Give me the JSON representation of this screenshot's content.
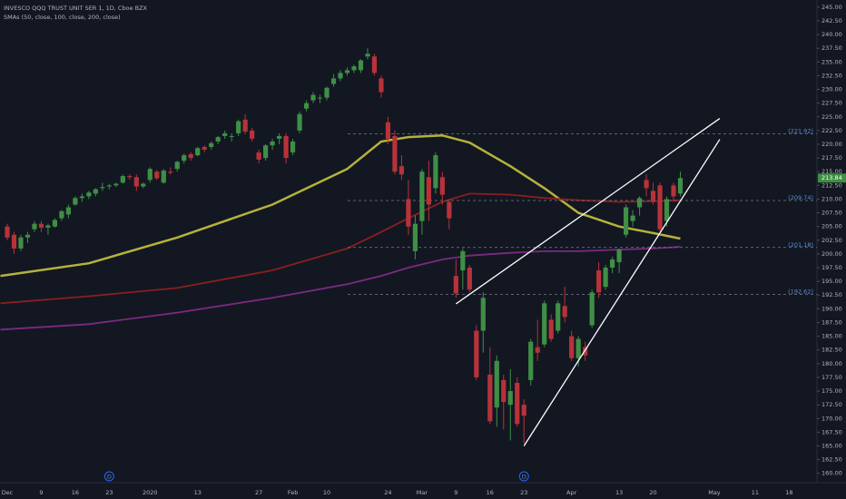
{
  "chart_data": {
    "type": "candlestick",
    "title": "INVESCO QQQ TRUST UNIT SER 1, 1D, Cboe BZX",
    "subtitle": "SMAs (50, close, 100, close, 200, close)",
    "up_color": "#3f8f45",
    "down_color": "#b8323a",
    "ylim": [
      158.3,
      246.3
    ],
    "yticks": [
      {
        "value": 160,
        "label": "160.00"
      },
      {
        "value": 162.5,
        "label": "162.50"
      },
      {
        "value": 165,
        "label": "165.00"
      },
      {
        "value": 167.5,
        "label": "167.50"
      },
      {
        "value": 170,
        "label": "170.00"
      },
      {
        "value": 172.5,
        "label": "172.50"
      },
      {
        "value": 175,
        "label": "175.00"
      },
      {
        "value": 177.5,
        "label": "177.50"
      },
      {
        "value": 180,
        "label": "180.00"
      },
      {
        "value": 182.5,
        "label": "182.50"
      },
      {
        "value": 185,
        "label": "185.00"
      },
      {
        "value": 187.5,
        "label": "187.50"
      },
      {
        "value": 190,
        "label": "190.00"
      },
      {
        "value": 192.5,
        "label": "192.50"
      },
      {
        "value": 195,
        "label": "195.00"
      },
      {
        "value": 197.5,
        "label": "197.50"
      },
      {
        "value": 200,
        "label": "200.00"
      },
      {
        "value": 202.5,
        "label": "202.50"
      },
      {
        "value": 205,
        "label": "205.00"
      },
      {
        "value": 207.5,
        "label": "207.50"
      },
      {
        "value": 210,
        "label": "210.00"
      },
      {
        "value": 212.5,
        "label": "212.50"
      },
      {
        "value": 215,
        "label": "215.00"
      },
      {
        "value": 217.5,
        "label": "217.50"
      },
      {
        "value": 220,
        "label": "220.00"
      },
      {
        "value": 222.5,
        "label": "222.50"
      },
      {
        "value": 225,
        "label": "225.00"
      },
      {
        "value": 227.5,
        "label": "227.50"
      },
      {
        "value": 230,
        "label": "230.00"
      },
      {
        "value": 232.5,
        "label": "232.50"
      },
      {
        "value": 235,
        "label": "235.00"
      },
      {
        "value": 237.5,
        "label": "237.50"
      },
      {
        "value": 240,
        "label": "240.00"
      },
      {
        "value": 242.5,
        "label": "242.50"
      },
      {
        "value": 245,
        "label": "245.00"
      }
    ],
    "xticks": [
      {
        "value": 0,
        "label": "Dec"
      },
      {
        "value": 5,
        "label": "9"
      },
      {
        "value": 10,
        "label": "16"
      },
      {
        "value": 15,
        "label": "23"
      },
      {
        "value": 21,
        "label": "2020"
      },
      {
        "value": 28,
        "label": "13"
      },
      {
        "value": 37,
        "label": "27"
      },
      {
        "value": 42,
        "label": "Feb"
      },
      {
        "value": 47,
        "label": "10"
      },
      {
        "value": 56,
        "label": "24"
      },
      {
        "value": 61,
        "label": "Mar"
      },
      {
        "value": 66,
        "label": "9"
      },
      {
        "value": 71,
        "label": "16"
      },
      {
        "value": 76,
        "label": "23"
      },
      {
        "value": 83,
        "label": "Apr"
      },
      {
        "value": 90,
        "label": "13"
      },
      {
        "value": 95,
        "label": "20"
      },
      {
        "value": 104,
        "label": "May"
      },
      {
        "value": 110,
        "label": "11"
      },
      {
        "value": 115,
        "label": "18"
      }
    ],
    "candles": [
      [
        205,
        205.5,
        202.5,
        203
      ],
      [
        203.5,
        204,
        200,
        201
      ],
      [
        201,
        203.5,
        200.5,
        203
      ],
      [
        203,
        204,
        202,
        203.5
      ],
      [
        204.5,
        206,
        204,
        205.5
      ],
      [
        205.5,
        206,
        204,
        204.8
      ],
      [
        204.8,
        205.5,
        203.5,
        205.2
      ],
      [
        205,
        206.5,
        204.8,
        206.2
      ],
      [
        206.5,
        208,
        206,
        207.8
      ],
      [
        207.2,
        209,
        206.5,
        208.5
      ],
      [
        209,
        210.5,
        208.8,
        210.2
      ],
      [
        210.2,
        211,
        209.5,
        210.5
      ],
      [
        210.5,
        211.5,
        210,
        211.2
      ],
      [
        211,
        212,
        210.5,
        211.8
      ],
      [
        212,
        213,
        211.5,
        212.2
      ],
      [
        212.3,
        212.8,
        211.8,
        212.5
      ],
      [
        212.5,
        213,
        212.2,
        212.8
      ],
      [
        213,
        214.5,
        212.8,
        214.2
      ],
      [
        214.2,
        214.5,
        213.5,
        214
      ],
      [
        214,
        214.5,
        211.5,
        212.3
      ],
      [
        212.3,
        213,
        212,
        212.8
      ],
      [
        213.5,
        215.8,
        213,
        215.5
      ],
      [
        215,
        215.3,
        213.5,
        213.8
      ],
      [
        213,
        215.5,
        212.8,
        215.2
      ],
      [
        215,
        215.8,
        214.5,
        214.8
      ],
      [
        215.5,
        217,
        215,
        216.8
      ],
      [
        217,
        218.3,
        216.5,
        218
      ],
      [
        218.2,
        218.5,
        217,
        217.5
      ],
      [
        218,
        219.5,
        217.8,
        219.3
      ],
      [
        219.5,
        219.8,
        218.5,
        219
      ],
      [
        219.5,
        220.5,
        219,
        220.2
      ],
      [
        220.5,
        221.5,
        220,
        221.3
      ],
      [
        221.5,
        222.5,
        221,
        222
      ],
      [
        221.5,
        222,
        220.5,
        221.5
      ],
      [
        222,
        224.5,
        221.5,
        224.2
      ],
      [
        224.5,
        225.5,
        221.8,
        222.3
      ],
      [
        222.5,
        223,
        220.5,
        221
      ],
      [
        218.5,
        219,
        216.5,
        217.2
      ],
      [
        217.5,
        220,
        217,
        219.8
      ],
      [
        219.8,
        221,
        219,
        220.5
      ],
      [
        221,
        222,
        220,
        221.5
      ],
      [
        221.5,
        222,
        216.5,
        217.5
      ],
      [
        218.5,
        221,
        218,
        220.5
      ],
      [
        222.5,
        226,
        222,
        225.5
      ],
      [
        226.5,
        228,
        226,
        227.5
      ],
      [
        228,
        229.5,
        227.5,
        229
      ],
      [
        228.5,
        229,
        227.5,
        228.5
      ],
      [
        228.5,
        230.5,
        228,
        230.3
      ],
      [
        231,
        232.8,
        230.5,
        232
      ],
      [
        232,
        233.5,
        231.5,
        233
      ],
      [
        233,
        234,
        232.5,
        233.5
      ],
      [
        233.5,
        234.5,
        233,
        234.2
      ],
      [
        233.5,
        235.5,
        233,
        235.3
      ],
      [
        236,
        237.5,
        235.5,
        236.5
      ],
      [
        236,
        236.5,
        232.5,
        233
      ],
      [
        232,
        232.5,
        228.5,
        229.5
      ],
      [
        224,
        225,
        220,
        221
      ],
      [
        221.5,
        222.5,
        214.5,
        215
      ],
      [
        216,
        218,
        213.5,
        214.5
      ],
      [
        210,
        213.5,
        203.5,
        205
      ],
      [
        200.5,
        207,
        199,
        205.5
      ],
      [
        206,
        215.5,
        203.5,
        215
      ],
      [
        214,
        217,
        206,
        209
      ],
      [
        212,
        218.5,
        211,
        218
      ],
      [
        214,
        215,
        209,
        210.8
      ],
      [
        209.5,
        210,
        204.5,
        206.5
      ],
      [
        196,
        199,
        192,
        192.8
      ],
      [
        197,
        201,
        193.5,
        200.5
      ],
      [
        197.5,
        198,
        193,
        193.5
      ],
      [
        186,
        187,
        177,
        177.5
      ],
      [
        186,
        193,
        182,
        192
      ],
      [
        178,
        183,
        169,
        169.5
      ],
      [
        172,
        181.5,
        168.5,
        180.5
      ],
      [
        177,
        178,
        168,
        173
      ],
      [
        172.5,
        179,
        166,
        175
      ],
      [
        176.5,
        177.5,
        168.5,
        169
      ],
      [
        172.5,
        173.5,
        165.5,
        170.5
      ],
      [
        177,
        184.5,
        176,
        184
      ],
      [
        183,
        188,
        180.5,
        182
      ],
      [
        183.5,
        191.5,
        183,
        191
      ],
      [
        188,
        189,
        184,
        184.5
      ],
      [
        186,
        191.5,
        185.5,
        191
      ],
      [
        190.5,
        194,
        187.5,
        188.5
      ],
      [
        185,
        186,
        180.5,
        181
      ],
      [
        181,
        185,
        179.5,
        184.5
      ],
      [
        183,
        184,
        180.5,
        181.5
      ],
      [
        187,
        193.5,
        186.5,
        193
      ],
      [
        197,
        198.5,
        192,
        193
      ],
      [
        194,
        198,
        193.5,
        197.5
      ],
      [
        197.5,
        199.5,
        196.5,
        199
      ],
      [
        198.5,
        201,
        196.5,
        200.8
      ],
      [
        203.5,
        209,
        203,
        208.5
      ],
      [
        206,
        208,
        205,
        207
      ],
      [
        208.5,
        210.5,
        207,
        210.2
      ],
      [
        213.5,
        214.5,
        210.5,
        212
      ],
      [
        211.5,
        213,
        209,
        209.5
      ],
      [
        212.5,
        213,
        203.5,
        204.5
      ],
      [
        206,
        210.5,
        205,
        210
      ],
      [
        212.5,
        213,
        209.5,
        210.5
      ],
      [
        211,
        215,
        210.5,
        213.84
      ]
    ],
    "series": [
      {
        "color": "#b5b33a",
        "x": [
          -1,
          12,
          25,
          39,
          50,
          55,
          59,
          64,
          68,
          74,
          79,
          84,
          90,
          95,
          99
        ],
        "values": [
          196,
          198.3,
          203,
          209,
          215.5,
          220.5,
          221.3,
          221.6,
          220.3,
          216,
          212,
          207.5,
          205,
          203.8,
          202.8
        ]
      },
      {
        "color": "#8a1f1f",
        "x": [
          -1,
          12,
          25,
          39,
          50,
          55,
          59,
          64,
          68,
          74,
          79,
          84,
          90,
          95,
          99
        ],
        "values": [
          191,
          192.3,
          193.8,
          197,
          201,
          204,
          206.5,
          209.5,
          211,
          210.8,
          210.2,
          209.8,
          209.5,
          209.6,
          209.8
        ]
      },
      {
        "color": "#7b2a80",
        "x": [
          -1,
          12,
          25,
          39,
          50,
          55,
          59,
          64,
          68,
          74,
          79,
          84,
          90,
          95,
          99
        ],
        "values": [
          186.2,
          187.2,
          189.3,
          192,
          194.5,
          196,
          197.5,
          199,
          199.7,
          200.2,
          200.5,
          200.5,
          200.8,
          201,
          201.3
        ]
      }
    ],
    "levels": [
      {
        "value": 221.92,
        "label": "(221.92)"
      },
      {
        "value": 209.74,
        "label": "(209.74)"
      },
      {
        "value": 201.18,
        "label": "(201.18)"
      },
      {
        "value": 192.62,
        "label": "(192.62)"
      }
    ],
    "trendlines": [
      {
        "x": [
          66,
          104.8
        ],
        "y": [
          190.9,
          224.7
        ]
      },
      {
        "x": [
          76,
          104.8
        ],
        "y": [
          165,
          220.9
        ]
      }
    ],
    "markers": [
      {
        "x": 15,
        "label": "D"
      },
      {
        "x": 76,
        "label": "D"
      }
    ]
  }
}
